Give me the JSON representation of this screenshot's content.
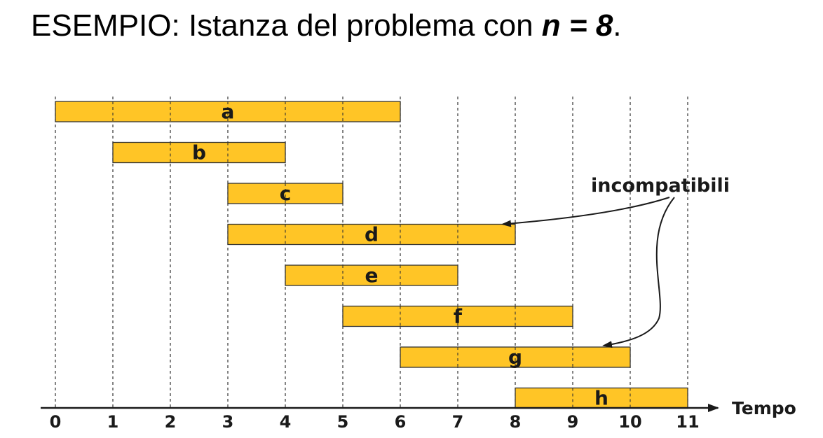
{
  "title": {
    "prefix": "ESEMPIO: Istanza del problema con ",
    "math": "n = 8",
    "suffix": "."
  },
  "chart_data": {
    "type": "interval-schedule",
    "axis_label": "Tempo",
    "ticks": [
      0,
      1,
      2,
      3,
      4,
      5,
      6,
      7,
      8,
      9,
      10,
      11
    ],
    "xlim": [
      0,
      11
    ],
    "bar_color": "#FFC526",
    "intervals": [
      {
        "label": "a",
        "start": 0,
        "end": 6
      },
      {
        "label": "b",
        "start": 1,
        "end": 4
      },
      {
        "label": "c",
        "start": 3,
        "end": 5
      },
      {
        "label": "d",
        "start": 3,
        "end": 8
      },
      {
        "label": "e",
        "start": 4,
        "end": 7
      },
      {
        "label": "f",
        "start": 5,
        "end": 9
      },
      {
        "label": "g",
        "start": 6,
        "end": 10
      },
      {
        "label": "h",
        "start": 8,
        "end": 11
      }
    ],
    "annotation": {
      "text": "incompatibili",
      "points_to": [
        "d",
        "g"
      ]
    }
  }
}
